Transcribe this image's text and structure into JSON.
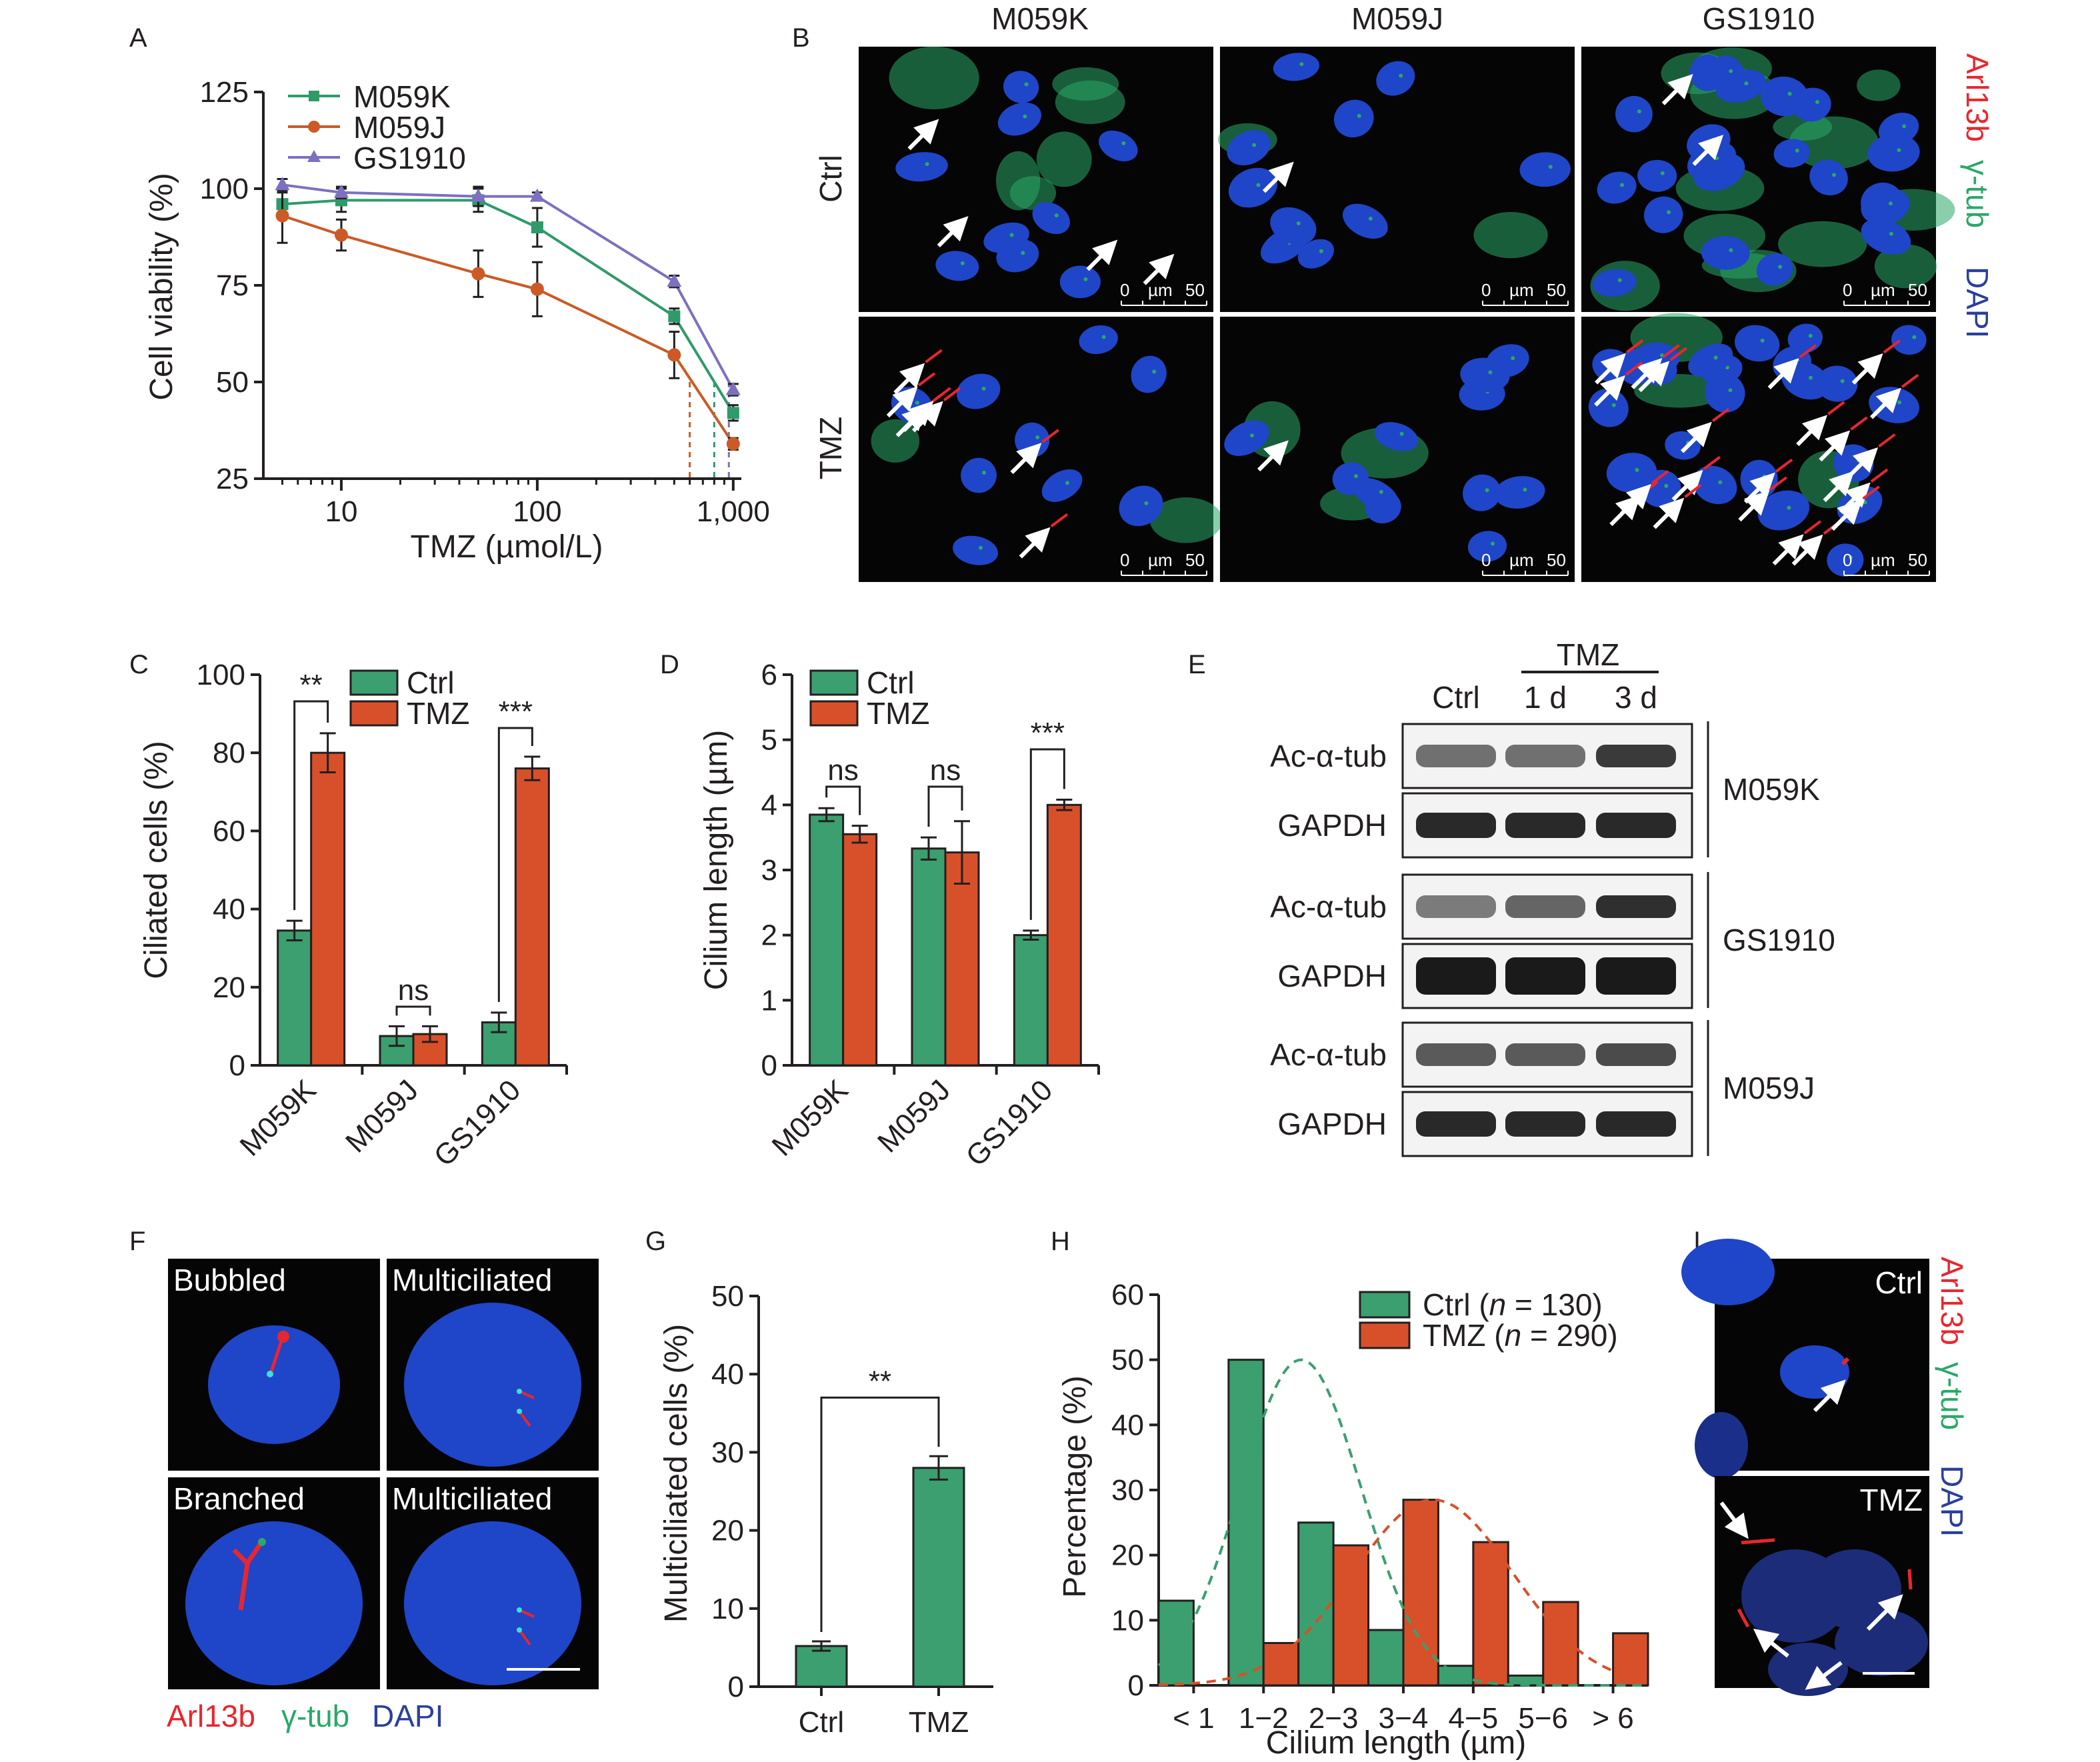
{
  "colors": {
    "ctrl": "#3b9f6f",
    "tmz": "#d7502a",
    "m059k": "#2f9a6a",
    "m059j": "#cc5a26",
    "gs1910": "#7d70c0",
    "arl13b": "#e8262f",
    "gammatub": "#2aa868",
    "dapi": "#2b3f9e",
    "nucleus": "#1f45c8"
  },
  "panels": {
    "A": "A",
    "B": "B",
    "C": "C",
    "D": "D",
    "E": "E",
    "F": "F",
    "G": "G",
    "H": "H",
    "I": "I"
  },
  "chart_data": [
    {
      "id": "A",
      "type": "line",
      "xlabel": "TMZ (µmol/L)",
      "ylabel": "Cell viability (%)",
      "xscale": "log",
      "xlim": [
        4,
        1100
      ],
      "ylim": [
        25,
        125
      ],
      "xticks": [
        10,
        100,
        1000
      ],
      "xtick_labels": [
        "10",
        "100",
        "1,000"
      ],
      "yticks": [
        25,
        50,
        75,
        100,
        125
      ],
      "legend_position": "top-left",
      "x": [
        5,
        10,
        50,
        100,
        500,
        1000
      ],
      "series": [
        {
          "name": "M059K",
          "marker": "square",
          "values": [
            96,
            97,
            97,
            90,
            67,
            42
          ],
          "errors": [
            3,
            3,
            3,
            5,
            2,
            2
          ]
        },
        {
          "name": "M059J",
          "marker": "circle",
          "values": [
            93,
            88,
            78,
            74,
            57,
            34
          ],
          "errors": [
            7,
            4,
            6,
            7,
            6,
            1.5
          ]
        },
        {
          "name": "GS1910",
          "marker": "triangle",
          "values": [
            101,
            99,
            98,
            98,
            76,
            48
          ],
          "errors": [
            1.5,
            1.5,
            2.5,
            1,
            1.5,
            1.5
          ]
        }
      ],
      "ic50_x": {
        "M059K": 800,
        "M059J": 600,
        "GS1910": 950
      }
    },
    {
      "id": "C",
      "type": "bar",
      "ylabel": "Ciliated cells (%)",
      "ylim": [
        0,
        100
      ],
      "yticks": [
        0,
        20,
        40,
        60,
        80,
        100
      ],
      "categories": [
        "M059K",
        "M059J",
        "GS1910"
      ],
      "legend_position": "top-center",
      "series": [
        {
          "name": "Ctrl",
          "values": [
            34.5,
            7.5,
            11
          ],
          "errors": [
            2.5,
            2.5,
            2.5
          ]
        },
        {
          "name": "TMZ",
          "values": [
            80,
            8,
            76
          ],
          "errors": [
            5,
            2,
            3
          ]
        }
      ],
      "significance": [
        "**",
        "ns",
        "***"
      ]
    },
    {
      "id": "D",
      "type": "bar",
      "ylabel": "Cilium length (µm)",
      "ylim": [
        0,
        6
      ],
      "yticks": [
        0,
        1,
        2,
        3,
        4,
        5,
        6
      ],
      "categories": [
        "M059K",
        "M059J",
        "GS1910"
      ],
      "legend_position": "top-left",
      "series": [
        {
          "name": "Ctrl",
          "values": [
            3.85,
            3.33,
            2.0
          ],
          "errors": [
            0.1,
            0.17,
            0.07
          ]
        },
        {
          "name": "TMZ",
          "values": [
            3.55,
            3.27,
            4.0
          ],
          "errors": [
            0.13,
            0.48,
            0.08
          ]
        }
      ],
      "significance": [
        "ns",
        "ns",
        "***"
      ]
    },
    {
      "id": "G",
      "type": "bar",
      "ylabel": "Multiciliated cells (%)",
      "ylim": [
        0,
        50
      ],
      "yticks": [
        0,
        10,
        20,
        30,
        40,
        50
      ],
      "categories": [
        "Ctrl",
        "TMZ"
      ],
      "values": [
        5.2,
        28
      ],
      "errors": [
        0.6,
        1.5
      ],
      "significance": "**"
    },
    {
      "id": "H",
      "type": "bar",
      "xlabel": "Cilium length (µm)",
      "ylabel": "Percentage (%)",
      "ylim": [
        0,
        60
      ],
      "yticks": [
        0,
        10,
        20,
        30,
        40,
        50,
        60
      ],
      "categories": [
        "< 1",
        "1−2",
        "2−3",
        "3−4",
        "4−5",
        "5−6",
        "> 6"
      ],
      "legend_position": "top-right",
      "series": [
        {
          "name": "Ctrl",
          "n": "130",
          "values": [
            13,
            50,
            25,
            8.5,
            3,
            1.5,
            0
          ]
        },
        {
          "name": "TMZ",
          "n": "290",
          "values": [
            0,
            6.5,
            21.5,
            28.5,
            22,
            12.8,
            8
          ]
        }
      ],
      "fit_curves": "dashed gaussian per series"
    }
  ],
  "panel_B": {
    "columns": [
      "M059K",
      "M059J",
      "GS1910"
    ],
    "rows": [
      "Ctrl",
      "TMZ"
    ],
    "scale_bar": {
      "zero": "0",
      "unit": "µm",
      "value": "50"
    },
    "channels": [
      "Arl13b",
      "γ-tub",
      "DAPI"
    ]
  },
  "panel_E": {
    "header": "TMZ",
    "lanes": [
      "Ctrl",
      "1 d",
      "3 d"
    ],
    "groups": [
      {
        "cell": "M059K",
        "rows": [
          "Ac-α-tub",
          "GAPDH"
        ],
        "ac_intensity": [
          0.55,
          0.55,
          0.8
        ]
      },
      {
        "cell": "GS1910",
        "rows": [
          "Ac-α-tub",
          "GAPDH"
        ],
        "ac_intensity": [
          0.5,
          0.6,
          0.85
        ]
      },
      {
        "cell": "M059J",
        "rows": [
          "Ac-α-tub",
          "GAPDH"
        ],
        "ac_intensity": [
          0.65,
          0.65,
          0.72
        ]
      }
    ]
  },
  "panel_F": {
    "tiles": [
      "Bubbled",
      "Multiciliated",
      "Branched",
      "Multiciliated"
    ],
    "channels": [
      "Arl13b",
      "γ-tub",
      "DAPI"
    ]
  },
  "panel_I": {
    "tiles": [
      "Ctrl",
      "TMZ"
    ],
    "channels": [
      "Arl13b",
      "γ-tub",
      "DAPI"
    ]
  }
}
